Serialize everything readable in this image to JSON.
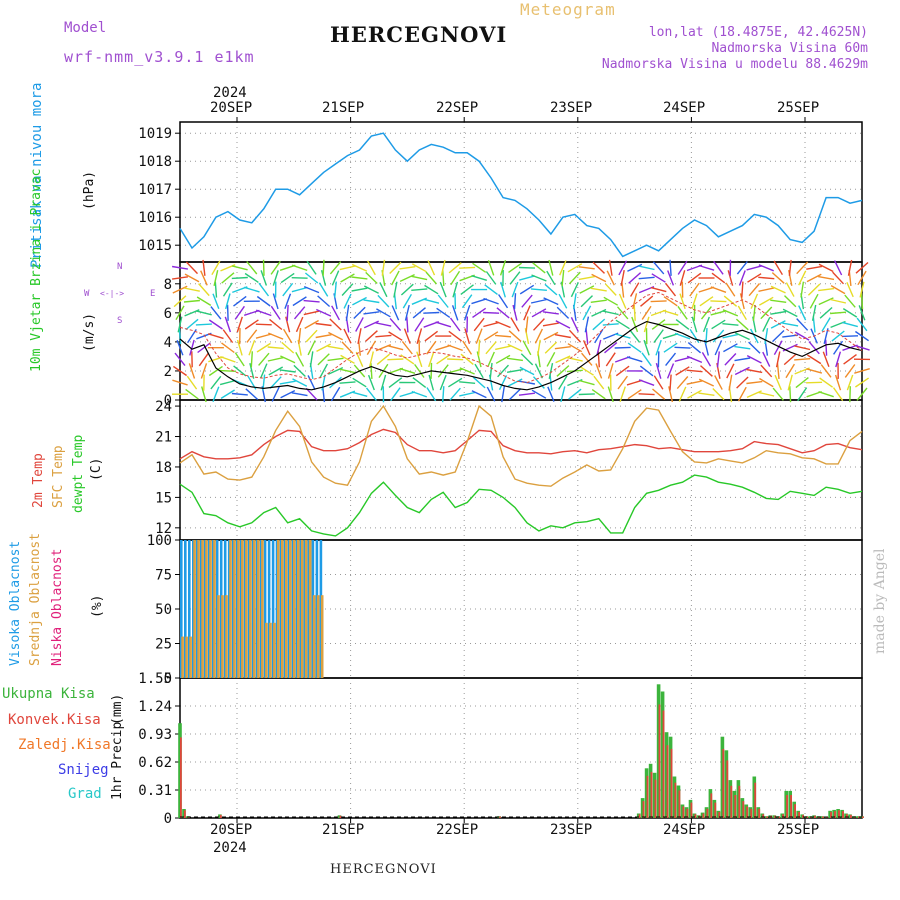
{
  "header": {
    "model_label": "Model",
    "model_name": "wrf-nmm_v3.9.1 e1km",
    "title": "HERCEGNOVI",
    "product": "Meteogram",
    "lonlat": "lon,lat (18.4875E, 42.4625N)",
    "elevation": "Nadmorska Visina 60m",
    "model_elevation": "Nadmorska Visina u modelu 88.4629m",
    "footer_title": "HERCEGNOVI",
    "credit": "made by Angel"
  },
  "time_axis": {
    "year": "2024",
    "days": [
      "20SEP",
      "21SEP",
      "22SEP",
      "23SEP",
      "24SEP",
      "25SEP"
    ]
  },
  "colors": {
    "pressure": "#1e9be6",
    "t2m": "#e0463c",
    "tsfc": "#dba040",
    "dewpt": "#28c828",
    "high_cloud": "#1e9be6",
    "mid_cloud": "#dba040",
    "low_cloud": "#e0207a",
    "total_precip": "#3cb43c",
    "conv_precip": "#e0463c",
    "frozen": "#f07828",
    "snow": "#3c3ce6",
    "hail": "#28c8c8",
    "wind_speed": "#000000",
    "gust": "#e0463c"
  },
  "chart_data": [
    {
      "type": "line",
      "id": "pressure",
      "ylabel": "Pritisak na nivou mora",
      "unit": "(hPa)",
      "x_hours": [
        0,
        3,
        6,
        9,
        12,
        15,
        18,
        21,
        24,
        27,
        30,
        33,
        36,
        39,
        42,
        45,
        48,
        51,
        54,
        57,
        60,
        63,
        66,
        69,
        72,
        75,
        78,
        81,
        84,
        87,
        90,
        93,
        96,
        99,
        102,
        105,
        108,
        111,
        114,
        117,
        120,
        123,
        126,
        129,
        132,
        135,
        138,
        141,
        144,
        147,
        150,
        153,
        156,
        159,
        162,
        165,
        168,
        171
      ],
      "values": [
        1015.6,
        1014.9,
        1015.3,
        1016.0,
        1016.2,
        1015.9,
        1015.8,
        1016.3,
        1017.0,
        1017.0,
        1016.8,
        1017.2,
        1017.6,
        1017.9,
        1018.2,
        1018.4,
        1018.9,
        1019.0,
        1018.4,
        1018.0,
        1018.4,
        1018.6,
        1018.5,
        1018.3,
        1018.3,
        1018.0,
        1017.4,
        1016.7,
        1016.6,
        1016.3,
        1015.9,
        1015.4,
        1016.0,
        1016.1,
        1015.7,
        1015.6,
        1015.2,
        1014.6,
        1014.8,
        1015.0,
        1014.8,
        1015.2,
        1015.6,
        1015.9,
        1015.7,
        1015.3,
        1015.5,
        1015.7,
        1016.1,
        1016.0,
        1015.7,
        1015.2,
        1015.1,
        1015.5,
        1016.7,
        1016.7,
        1016.5,
        1016.6
      ],
      "ylim": [
        1014.4,
        1019.4
      ],
      "yticks": [
        1015,
        1016,
        1017,
        1018,
        1019
      ]
    },
    {
      "type": "barbs",
      "id": "wind",
      "ylabel": "10m Vjetar Brzina i Pravac",
      "unit": "(m/s)",
      "compass": [
        "N",
        "W",
        "E",
        "S"
      ],
      "compass_symbols": [
        "<-|->",
        "α<-|->β"
      ],
      "x_hours": [
        0,
        3,
        6,
        9,
        12,
        15,
        18,
        21,
        24,
        27,
        30,
        33,
        36,
        39,
        42,
        45,
        48,
        51,
        54,
        57,
        60,
        63,
        66,
        69,
        72,
        75,
        78,
        81,
        84,
        87,
        90,
        93,
        96,
        99,
        102,
        105,
        108,
        111,
        114,
        117,
        120,
        123,
        126,
        129,
        132,
        135,
        138,
        141,
        144,
        147,
        150,
        153,
        156,
        159,
        162,
        165,
        168,
        171
      ],
      "speed": [
        4.2,
        3.5,
        3.8,
        2.2,
        1.6,
        1.1,
        0.9,
        0.8,
        0.9,
        1.0,
        0.8,
        0.7,
        0.9,
        1.2,
        1.6,
        2.0,
        2.3,
        2.0,
        1.7,
        1.6,
        1.8,
        2.0,
        1.9,
        1.8,
        1.7,
        1.5,
        1.3,
        1.0,
        0.8,
        0.7,
        0.9,
        1.2,
        1.6,
        2.0,
        2.6,
        3.2,
        3.8,
        4.4,
        5.0,
        5.4,
        5.2,
        4.9,
        4.6,
        4.2,
        4.0,
        4.3,
        4.6,
        4.8,
        4.5,
        4.1,
        3.7,
        3.3,
        3.0,
        3.4,
        3.8,
        3.9,
        3.6,
        3.4
      ],
      "gust": [
        5.0,
        4.8,
        4.5,
        3.2,
        2.2,
        1.8,
        1.6,
        1.5,
        1.7,
        1.8,
        1.6,
        1.4,
        1.6,
        2.2,
        2.8,
        3.3,
        3.6,
        3.4,
        3.1,
        2.9,
        3.1,
        3.3,
        3.2,
        3.0,
        2.9,
        2.6,
        2.2,
        1.7,
        1.3,
        1.2,
        1.5,
        1.9,
        2.5,
        3.1,
        3.8,
        4.6,
        5.4,
        6.0,
        6.6,
        7.2,
        7.4,
        7.0,
        6.6,
        6.2,
        6.0,
        6.3,
        6.6,
        6.9,
        6.5,
        5.9,
        5.3,
        4.7,
        4.2,
        4.4,
        4.8,
        4.6,
        4.0,
        3.4
      ],
      "ylim": [
        0,
        9.5
      ],
      "yticks": [
        0,
        2,
        4,
        6,
        8
      ]
    },
    {
      "type": "line",
      "id": "temperature",
      "ylabel": [
        "2m Temp",
        "SFC Temp",
        "dewpt Temp"
      ],
      "unit": "(C)",
      "x_hours": [
        0,
        3,
        6,
        9,
        12,
        15,
        18,
        21,
        24,
        27,
        30,
        33,
        36,
        39,
        42,
        45,
        48,
        51,
        54,
        57,
        60,
        63,
        66,
        69,
        72,
        75,
        78,
        81,
        84,
        87,
        90,
        93,
        96,
        99,
        102,
        105,
        108,
        111,
        114,
        117,
        120,
        123,
        126,
        129,
        132,
        135,
        138,
        141,
        144,
        147,
        150,
        153,
        156,
        159,
        162,
        165,
        168,
        171
      ],
      "series": [
        {
          "name": "2m Temp",
          "key": "t2m",
          "values": [
            18.8,
            19.5,
            19.0,
            18.8,
            18.8,
            18.9,
            19.2,
            20.2,
            21.0,
            21.6,
            21.5,
            20.0,
            19.6,
            19.6,
            19.8,
            20.4,
            21.2,
            21.7,
            21.4,
            20.2,
            19.6,
            19.6,
            19.4,
            19.6,
            20.6,
            21.6,
            21.5,
            20.1,
            19.6,
            19.4,
            19.4,
            19.3,
            19.5,
            19.6,
            19.4,
            19.7,
            19.8,
            20.0,
            20.2,
            20.1,
            19.8,
            19.9,
            19.7,
            19.5,
            19.5,
            19.5,
            19.6,
            19.8,
            20.5,
            20.3,
            20.2,
            19.8,
            19.4,
            19.6,
            20.2,
            20.3,
            19.9,
            19.7
          ]
        },
        {
          "name": "SFC Temp",
          "key": "tsfc",
          "values": [
            18.4,
            19.2,
            17.3,
            17.5,
            16.8,
            16.7,
            17.0,
            19.0,
            21.6,
            23.5,
            22.0,
            18.5,
            17.0,
            16.4,
            16.2,
            18.5,
            22.5,
            24.0,
            22.0,
            18.8,
            17.3,
            17.5,
            17.2,
            17.5,
            20.5,
            24.0,
            23.0,
            19.0,
            16.8,
            16.4,
            16.2,
            16.1,
            16.9,
            17.5,
            18.2,
            17.6,
            17.7,
            19.8,
            22.5,
            23.8,
            23.6,
            21.5,
            19.5,
            18.5,
            18.4,
            18.8,
            18.6,
            18.4,
            18.9,
            19.6,
            19.4,
            19.3,
            18.9,
            18.8,
            18.3,
            18.3,
            20.6,
            21.5
          ]
        },
        {
          "name": "dewpt Temp",
          "key": "dewpt",
          "values": [
            16.3,
            15.5,
            13.4,
            13.2,
            12.5,
            12.1,
            12.5,
            13.5,
            14.0,
            12.5,
            12.9,
            11.7,
            11.4,
            11.2,
            12.0,
            13.5,
            15.4,
            16.5,
            15.2,
            14.0,
            13.5,
            14.8,
            15.5,
            14.0,
            14.5,
            15.8,
            15.7,
            15.0,
            14.0,
            12.5,
            11.7,
            12.2,
            12.0,
            12.5,
            12.6,
            12.9,
            11.5,
            11.5,
            14.0,
            15.4,
            15.7,
            16.2,
            16.5,
            17.2,
            17.0,
            16.5,
            16.3,
            16.0,
            15.5,
            14.9,
            14.8,
            15.6,
            15.4,
            15.2,
            16.0,
            15.8,
            15.4,
            15.6
          ]
        }
      ],
      "ylim": [
        10.8,
        24.6
      ],
      "yticks": [
        12,
        15,
        18,
        21,
        24
      ]
    },
    {
      "type": "bar",
      "id": "cloud",
      "ylabel": [
        "Visoka Oblacnost",
        "Srednja Oblacnost",
        "Niska Oblacnost"
      ],
      "unit": "(%)",
      "x_hours": [
        0,
        3,
        6,
        9,
        12,
        15,
        18,
        21,
        24,
        27,
        30,
        33,
        36,
        39,
        42,
        45,
        48,
        51,
        54,
        57,
        60,
        63,
        66,
        69,
        72,
        75,
        78,
        81,
        84,
        87,
        90,
        93,
        96,
        99,
        102,
        105,
        108,
        111,
        114,
        117,
        120,
        123,
        126,
        129,
        132,
        135,
        138,
        141,
        144,
        147,
        150,
        153,
        156,
        159,
        162,
        165,
        168,
        171
      ],
      "series": [
        {
          "name": "Visoka Oblacnost",
          "key": "high_cloud",
          "values": [
            100,
            100,
            100,
            100,
            100,
            100,
            100,
            100,
            100,
            100,
            100,
            100,
            0,
            0,
            0,
            0,
            0,
            0,
            0,
            0,
            0,
            0,
            0,
            0,
            0,
            0,
            0,
            0,
            0,
            0,
            0,
            0,
            0,
            0,
            0,
            0,
            0,
            0,
            0,
            0,
            0,
            0,
            0,
            0,
            0,
            0,
            0,
            0,
            0,
            0,
            0,
            0,
            0,
            0,
            0,
            0,
            0,
            0
          ]
        },
        {
          "name": "Srednja Oblacnost",
          "key": "mid_cloud",
          "values": [
            30,
            100,
            100,
            60,
            100,
            100,
            100,
            40,
            100,
            100,
            100,
            60,
            0,
            0,
            0,
            0,
            0,
            0,
            0,
            0,
            0,
            0,
            0,
            0,
            0,
            0,
            0,
            0,
            0,
            0,
            0,
            0,
            0,
            0,
            0,
            0,
            0,
            0,
            0,
            0,
            0,
            0,
            0,
            0,
            0,
            0,
            0,
            0,
            0,
            0,
            0,
            0,
            0,
            0,
            0,
            0,
            0,
            0
          ]
        },
        {
          "name": "Niska Oblacnost",
          "key": "low_cloud",
          "values": [
            0,
            0,
            0,
            0,
            0,
            0,
            0,
            0,
            0,
            0,
            0,
            0,
            0,
            0,
            0,
            0,
            0,
            0,
            0,
            0,
            0,
            0,
            0,
            0,
            0,
            0,
            0,
            0,
            0,
            0,
            0,
            0,
            0,
            0,
            0,
            0,
            0,
            0,
            0,
            0,
            0,
            0,
            0,
            0,
            0,
            0,
            0,
            0,
            0,
            0,
            0,
            0,
            0,
            0,
            0,
            0,
            0,
            0
          ]
        }
      ],
      "ylim": [
        0,
        100
      ],
      "yticks": [
        0,
        25,
        50,
        75,
        100
      ]
    },
    {
      "type": "bar",
      "id": "precip",
      "ylabel": "1hr Precip",
      "unit": "(mm)",
      "legend": [
        "Ukupna Kisa",
        "Konvek.Kisa",
        "Zaledj.Kisa",
        "Snijeg",
        "Grad"
      ],
      "x_hours": [
        0,
        1,
        2,
        10,
        40,
        80,
        115,
        116,
        117,
        118,
        119,
        120,
        121,
        122,
        123,
        124,
        125,
        126,
        127,
        128,
        129,
        130,
        131,
        132,
        133,
        134,
        135,
        136,
        137,
        138,
        139,
        140,
        141,
        142,
        143,
        144,
        145,
        146,
        147,
        148,
        149,
        150,
        151,
        152,
        153,
        154,
        155,
        156,
        157,
        158,
        159,
        160,
        161,
        162,
        163,
        164,
        165,
        166,
        167,
        168,
        169,
        170,
        171
      ],
      "values": [
        1.05,
        0.1,
        0.02,
        0.04,
        0.03,
        0.02,
        0.05,
        0.22,
        0.55,
        0.6,
        0.5,
        1.48,
        1.4,
        0.95,
        0.9,
        0.46,
        0.36,
        0.15,
        0.12,
        0.2,
        0.05,
        0.03,
        0.06,
        0.12,
        0.32,
        0.2,
        0.08,
        0.9,
        0.75,
        0.42,
        0.3,
        0.42,
        0.22,
        0.15,
        0.12,
        0.46,
        0.12,
        0.05,
        0.02,
        0.03,
        0.03,
        0.02,
        0.05,
        0.3,
        0.3,
        0.18,
        0.08,
        0.04,
        0.02,
        0.02,
        0.03,
        0.02,
        0.02,
        0.01,
        0.08,
        0.09,
        0.1,
        0.09,
        0.05,
        0.04,
        0.02,
        0.02,
        0.02
      ],
      "ylim": [
        0,
        1.55
      ],
      "yticks": [
        0,
        0.31,
        0.62,
        0.93,
        1.24,
        1.55
      ]
    }
  ]
}
